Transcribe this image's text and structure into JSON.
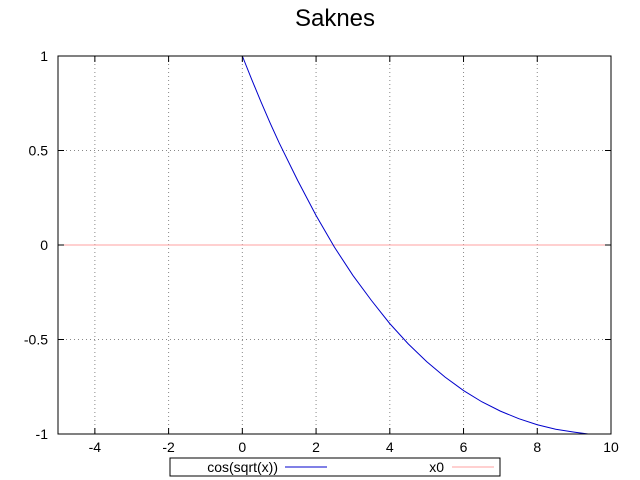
{
  "chart_data": {
    "type": "line",
    "title": "Saknes",
    "xlabel": "",
    "ylabel": "",
    "xlim": [
      -5,
      10
    ],
    "ylim": [
      -1,
      1
    ],
    "xticks": [
      -4,
      -2,
      0,
      2,
      4,
      6,
      8,
      10
    ],
    "yticks": [
      -1,
      -0.5,
      0,
      0.5,
      1
    ],
    "xtick_labels": [
      "-4",
      "-2",
      "0",
      "2",
      "4",
      "6",
      "8",
      "10"
    ],
    "ytick_labels": [
      "-1",
      "-0.5",
      "0",
      "0.5",
      "1"
    ],
    "grid": true,
    "legend_position": "bottom-center",
    "series": [
      {
        "name": "cos(sqrt(x))",
        "color": "#0000cc",
        "x": [
          0,
          0.25,
          0.5,
          0.75,
          1,
          1.5,
          2,
          2.5,
          3,
          3.5,
          4,
          4.5,
          5,
          5.5,
          6,
          6.5,
          7,
          7.5,
          8,
          8.5,
          9,
          9.38
        ],
        "y": [
          1,
          0.878,
          0.76,
          0.647,
          0.54,
          0.342,
          0.156,
          -0.012,
          -0.161,
          -0.293,
          -0.416,
          -0.523,
          -0.617,
          -0.699,
          -0.77,
          -0.83,
          -0.879,
          -0.919,
          -0.951,
          -0.975,
          -0.99,
          -1
        ]
      },
      {
        "name": "x0",
        "color": "#ffa0a0",
        "x": [
          -5,
          10
        ],
        "y": [
          0,
          0
        ]
      }
    ]
  }
}
